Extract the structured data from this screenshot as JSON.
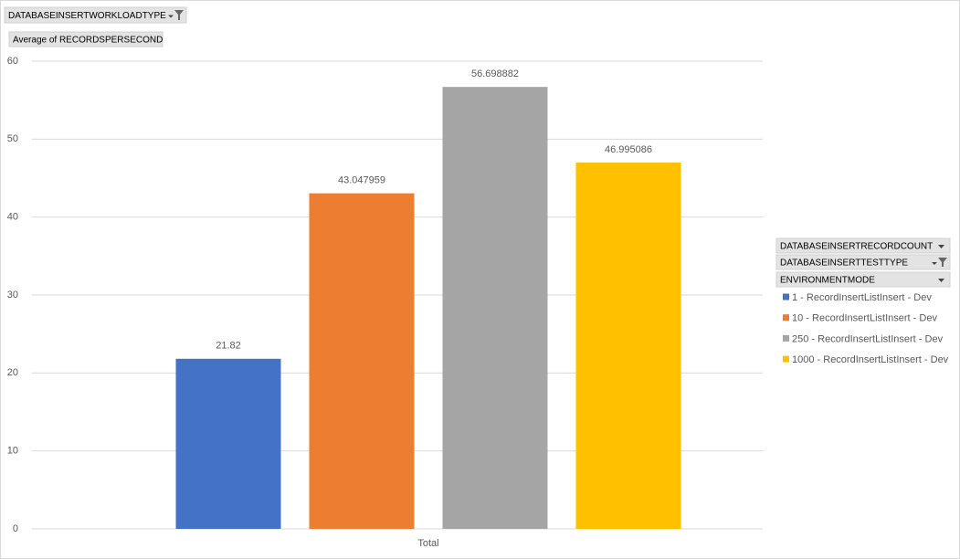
{
  "chart_data": {
    "type": "bar",
    "filter_buttons": [
      "DATABASEINSERTWORKLOADTYPE"
    ],
    "value_button": "Average of RECORDSPERSECOND",
    "legend_buttons": [
      "DATABASEINSERTRECORDCOUNT",
      "DATABASEINSERTTESTTYPE",
      "ENVIRONMENTMODE"
    ],
    "categories": [
      "Total"
    ],
    "series": [
      {
        "name": "1 - RecordInsertListInsert - Dev",
        "color": "#4472c4",
        "values": [
          21.82
        ]
      },
      {
        "name": "10 - RecordInsertListInsert - Dev",
        "color": "#ed7d31",
        "values": [
          43.047959
        ]
      },
      {
        "name": "250 - RecordInsertListInsert - Dev",
        "color": "#a5a5a5",
        "values": [
          56.698882
        ]
      },
      {
        "name": "1000 - RecordInsertListInsert - Dev",
        "color": "#ffc000",
        "values": [
          46.995086
        ]
      }
    ],
    "ylim": [
      0,
      60
    ],
    "yticks": [
      0,
      10,
      20,
      30,
      40,
      50,
      60
    ],
    "grid": true,
    "legend": "right"
  }
}
